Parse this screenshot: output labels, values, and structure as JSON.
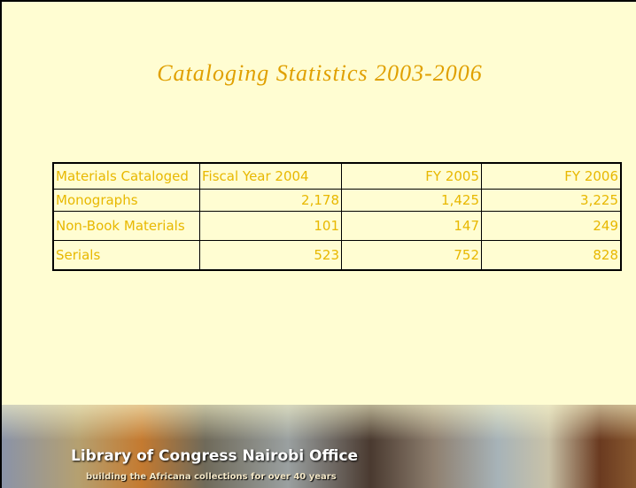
{
  "title": "Cataloging Statistics 2003-2006",
  "table": {
    "header": [
      "Materials Cataloged",
      "Fiscal Year 2004",
      "FY 2005",
      "FY 2006"
    ],
    "rows": [
      [
        "Monographs",
        "2,178",
        "1,425",
        "3,225"
      ],
      [
        "Non-Book Materials",
        "101",
        "147",
        "249"
      ],
      [
        "Serials",
        "523",
        "752",
        "828"
      ]
    ]
  },
  "banner": {
    "title": "Library of Congress Nairobi Office",
    "subtitle": "building the Africana collections for over 40 years"
  }
}
